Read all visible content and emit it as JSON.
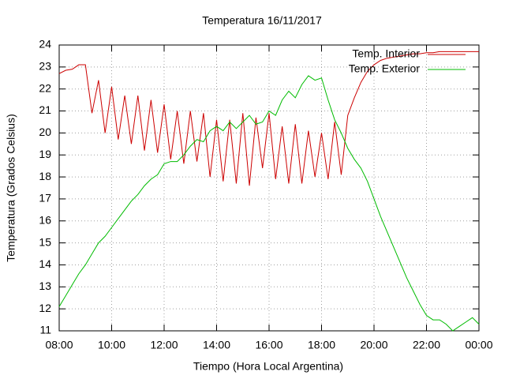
{
  "chart_data": {
    "type": "line",
    "title": "Temperatura 16/11/2017",
    "x_label": "Tiempo (Hora Local Argentina)",
    "y_label": "Temperatura (Grados Celsius)",
    "x": [
      8,
      8.25,
      8.5,
      8.75,
      9,
      9.25,
      9.5,
      9.75,
      10,
      10.25,
      10.5,
      10.75,
      11,
      11.25,
      11.5,
      11.75,
      12,
      12.25,
      12.5,
      12.75,
      13,
      13.25,
      13.5,
      13.75,
      14,
      14.25,
      14.5,
      14.75,
      15,
      15.25,
      15.5,
      15.75,
      16,
      16.25,
      16.5,
      16.75,
      17,
      17.25,
      17.5,
      17.75,
      18,
      18.25,
      18.5,
      18.75,
      19,
      19.25,
      19.5,
      19.75,
      20,
      20.25,
      20.5,
      20.75,
      21,
      21.25,
      21.5,
      21.75,
      22,
      22.25,
      22.5,
      22.75,
      23,
      23.25,
      23.5,
      23.75,
      24
    ],
    "series": [
      {
        "name": "Temp. Interior",
        "color": "#cc0000",
        "values": [
          22.7,
          22.85,
          22.9,
          23.1,
          23.1,
          20.9,
          22.4,
          20.0,
          22.1,
          19.7,
          21.7,
          19.5,
          21.7,
          19.2,
          21.5,
          19.1,
          21.3,
          18.8,
          21.0,
          18.6,
          21.0,
          18.7,
          20.9,
          18.0,
          20.6,
          17.8,
          20.6,
          17.7,
          20.9,
          17.6,
          20.7,
          18.4,
          20.9,
          17.9,
          20.3,
          17.7,
          20.4,
          17.7,
          20.1,
          18.0,
          20.0,
          17.9,
          20.5,
          18.1,
          20.8,
          21.6,
          22.3,
          22.8,
          23.1,
          23.3,
          23.4,
          23.45,
          23.5,
          23.55,
          23.6,
          23.6,
          23.65,
          23.65,
          23.7,
          23.7,
          23.7,
          23.7,
          23.7,
          23.7,
          23.7
        ]
      },
      {
        "name": "Temp. Exterior",
        "color": "#00bb00",
        "values": [
          12.1,
          12.6,
          13.1,
          13.6,
          14.0,
          14.5,
          15.0,
          15.3,
          15.7,
          16.1,
          16.5,
          16.9,
          17.2,
          17.6,
          17.9,
          18.1,
          18.6,
          18.7,
          18.7,
          19.0,
          19.4,
          19.7,
          19.6,
          20.1,
          20.3,
          20.1,
          20.5,
          20.2,
          20.5,
          20.8,
          20.4,
          20.5,
          21.0,
          20.8,
          21.5,
          21.9,
          21.6,
          22.2,
          22.6,
          22.4,
          22.5,
          21.5,
          20.6,
          20.0,
          19.3,
          18.8,
          18.4,
          17.8,
          17.0,
          16.2,
          15.5,
          14.8,
          14.1,
          13.4,
          12.8,
          12.2,
          11.7,
          11.5,
          11.5,
          11.3,
          11.0,
          11.2,
          11.4,
          11.6,
          11.3
        ]
      }
    ],
    "xlim": [
      8,
      24
    ],
    "xticks": [
      {
        "value": 8,
        "label": "08:00"
      },
      {
        "value": 10,
        "label": "10:00"
      },
      {
        "value": 12,
        "label": "12:00"
      },
      {
        "value": 14,
        "label": "14:00"
      },
      {
        "value": 16,
        "label": "16:00"
      },
      {
        "value": 18,
        "label": "18:00"
      },
      {
        "value": 20,
        "label": "20:00"
      },
      {
        "value": 22,
        "label": "22:00"
      },
      {
        "value": 24,
        "label": "00:00"
      }
    ],
    "ylim": [
      11,
      24
    ],
    "yticks": [
      11,
      12,
      13,
      14,
      15,
      16,
      17,
      18,
      19,
      20,
      21,
      22,
      23,
      24
    ],
    "grid": true,
    "legend": "top-right"
  }
}
